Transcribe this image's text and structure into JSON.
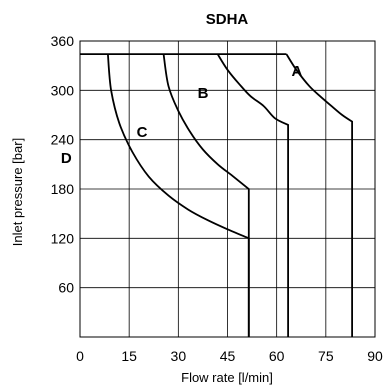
{
  "chart_data": {
    "type": "line",
    "title": "SDHA",
    "xlabel": "Flow rate [l/min]",
    "ylabel": "Inlet pressure [bar]",
    "xlim": [
      0,
      90
    ],
    "ylim": [
      0,
      360
    ],
    "xticks": [
      "0",
      "15",
      "30",
      "45",
      "60",
      "75",
      "90"
    ],
    "yticks": [
      "60",
      "120",
      "180",
      "240",
      "300",
      "360"
    ],
    "grid": true,
    "series": [
      {
        "name": "D",
        "points": [
          [
            8.5,
            344
          ],
          [
            9.5,
            300
          ],
          [
            12,
            260
          ],
          [
            16,
            225
          ],
          [
            21,
            195
          ],
          [
            27,
            172
          ],
          [
            33,
            155
          ],
          [
            39,
            142
          ],
          [
            45,
            131
          ],
          [
            51.5,
            120
          ],
          [
            51.5,
            0
          ]
        ]
      },
      {
        "name": "C",
        "points": [
          [
            25.5,
            344
          ],
          [
            27,
            305
          ],
          [
            30,
            275
          ],
          [
            33.5,
            250
          ],
          [
            37.5,
            228
          ],
          [
            42,
            210
          ],
          [
            46.5,
            196
          ],
          [
            51.5,
            180
          ],
          [
            51.5,
            0
          ]
        ]
      },
      {
        "name": "B",
        "points": [
          [
            42,
            344
          ],
          [
            45,
            325
          ],
          [
            48.5,
            308
          ],
          [
            52,
            293
          ],
          [
            56,
            281
          ],
          [
            59.5,
            266
          ],
          [
            63.5,
            258
          ],
          [
            63.5,
            0
          ]
        ]
      },
      {
        "name": "A",
        "points": [
          [
            63,
            344
          ],
          [
            66,
            325
          ],
          [
            70,
            305
          ],
          [
            73.5,
            292
          ],
          [
            77,
            280
          ],
          [
            80,
            270
          ],
          [
            83,
            262
          ],
          [
            83,
            0
          ]
        ]
      }
    ],
    "plateau": {
      "y": 344,
      "x_from": 0,
      "x_to": 63
    }
  }
}
